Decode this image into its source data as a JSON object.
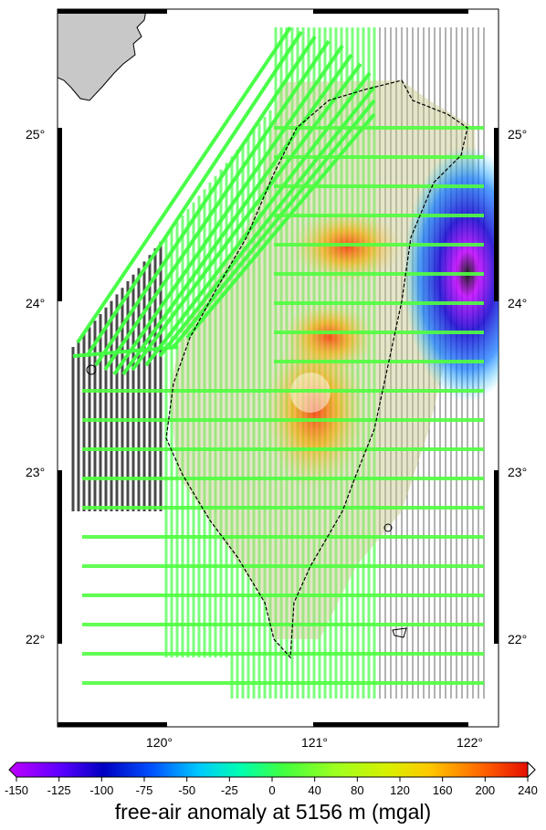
{
  "map": {
    "lat_labels": [
      "25°",
      "24°",
      "23°",
      "22°"
    ],
    "lon_labels": [
      "120°",
      "121°",
      "122°"
    ]
  },
  "colorbar": {
    "ticks": [
      "-150",
      "-125",
      "-100",
      "-75",
      "-50",
      "-25",
      "0",
      "40",
      "80",
      "120",
      "160",
      "200",
      "240"
    ],
    "colors": [
      "#c000ff",
      "#5a00ff",
      "#0000c0",
      "#0050ff",
      "#00c8ff",
      "#00ffb0",
      "#40ff40",
      "#9cff20",
      "#d8f000",
      "#ffc800",
      "#ff6400",
      "#e00000",
      "#ffffff"
    ],
    "caption": "free-air anomaly at 5156 m (mgal)"
  }
}
